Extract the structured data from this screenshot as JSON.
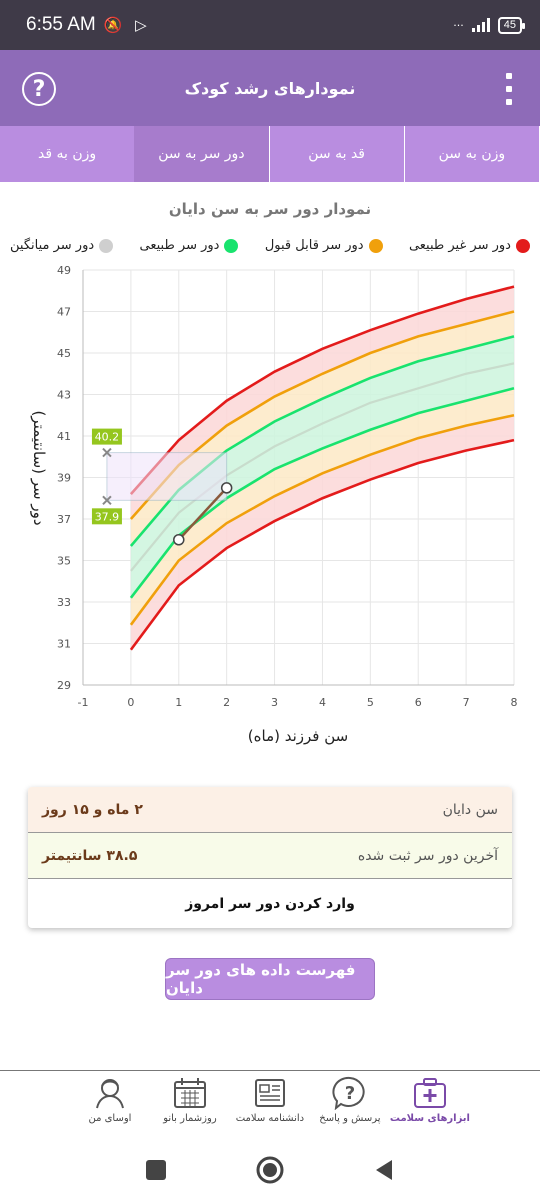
{
  "status_bar": {
    "time": "6:55 AM",
    "battery": "45"
  },
  "app_bar": {
    "title": "نمودارهای رشد کودک",
    "help_symbol": "?"
  },
  "tabs": [
    {
      "label": "وزن به سن",
      "active": false
    },
    {
      "label": "قد به سن",
      "active": false
    },
    {
      "label": "دور سر به سن",
      "active": true
    },
    {
      "label": "وزن به قد",
      "active": false
    }
  ],
  "chart_title": "نمودار دور سر به سن دایان",
  "legend": [
    {
      "label": "دور سر غیر طبیعی",
      "color": "#e31b1b"
    },
    {
      "label": "دور سر قابل قبول",
      "color": "#f0a00c"
    },
    {
      "label": "دور سر طبیعی",
      "color": "#19e36e"
    },
    {
      "label": "دور سر میانگین",
      "color": "#cfcfcf"
    }
  ],
  "chart_data": {
    "type": "line",
    "xlabel": "سن فرزند (ماه)",
    "ylabel": "دور سر (سانتیمتر)",
    "xlim": [
      -1,
      8
    ],
    "ylim": [
      29,
      49
    ],
    "x_ticks": [
      -1,
      0,
      1,
      2,
      3,
      4,
      5,
      6,
      7,
      8
    ],
    "y_ticks": [
      29,
      31,
      33,
      35,
      37,
      39,
      41,
      43,
      45,
      47,
      49
    ],
    "x": [
      0,
      1,
      2,
      3,
      4,
      5,
      6,
      7,
      8
    ],
    "curves": [
      {
        "values": [
          30.7,
          33.8,
          35.6,
          36.9,
          38.0,
          38.9,
          39.7,
          40.3,
          40.8
        ],
        "color": "#e31b1b"
      },
      {
        "values": [
          31.9,
          35.0,
          36.8,
          38.1,
          39.2,
          40.1,
          40.9,
          41.5,
          42.0
        ],
        "color": "#f0a00c"
      },
      {
        "values": [
          33.2,
          36.2,
          38.0,
          39.4,
          40.4,
          41.3,
          42.1,
          42.7,
          43.3
        ],
        "color": "#19e36e"
      },
      {
        "values": [
          34.5,
          37.3,
          39.1,
          40.5,
          41.6,
          42.6,
          43.3,
          44.0,
          44.5
        ],
        "color": "#c8dccc"
      },
      {
        "values": [
          35.7,
          38.4,
          40.3,
          41.7,
          42.8,
          43.8,
          44.6,
          45.2,
          45.8
        ],
        "color": "#19e36e"
      },
      {
        "values": [
          37.0,
          39.6,
          41.5,
          42.9,
          44.0,
          45.0,
          45.8,
          46.4,
          47.0
        ],
        "color": "#f0a00c"
      },
      {
        "values": [
          38.2,
          40.8,
          42.7,
          44.1,
          45.2,
          46.1,
          46.9,
          47.6,
          48.2
        ],
        "color": "#e31b1b"
      }
    ],
    "child_points": {
      "x": [
        1.0,
        2.0
      ],
      "y": [
        36.0,
        38.5
      ],
      "color": "#8b5a3c"
    },
    "range_markers": {
      "upper": 40.2,
      "lower": 37.9,
      "x_end": 2.0,
      "upper_label": "40.2",
      "lower_label": "37.9"
    }
  },
  "info": {
    "age_label": "سن دایان",
    "age_value": "۲ ماه و ۱۵ روز",
    "last_label": "آخرین دور سر ثبت شده",
    "last_value": "۳۸.۵ سانتیمتر",
    "action": "وارد کردن دور سر امروز"
  },
  "list_button": "فهرست داده های دور سر دایان",
  "bottom_nav": [
    {
      "label": "ابزارهای سلامت",
      "icon": "medical-kit-icon",
      "active": true
    },
    {
      "label": "پرسش و پاسخ",
      "icon": "question-bubble-icon",
      "active": false
    },
    {
      "label": "دانشنامه سلامت",
      "icon": "newspaper-icon",
      "active": false
    },
    {
      "label": "روزشمار بانو",
      "icon": "calendar-icon",
      "active": false
    },
    {
      "label": "اوسای من",
      "icon": "profile-icon",
      "active": false
    }
  ]
}
